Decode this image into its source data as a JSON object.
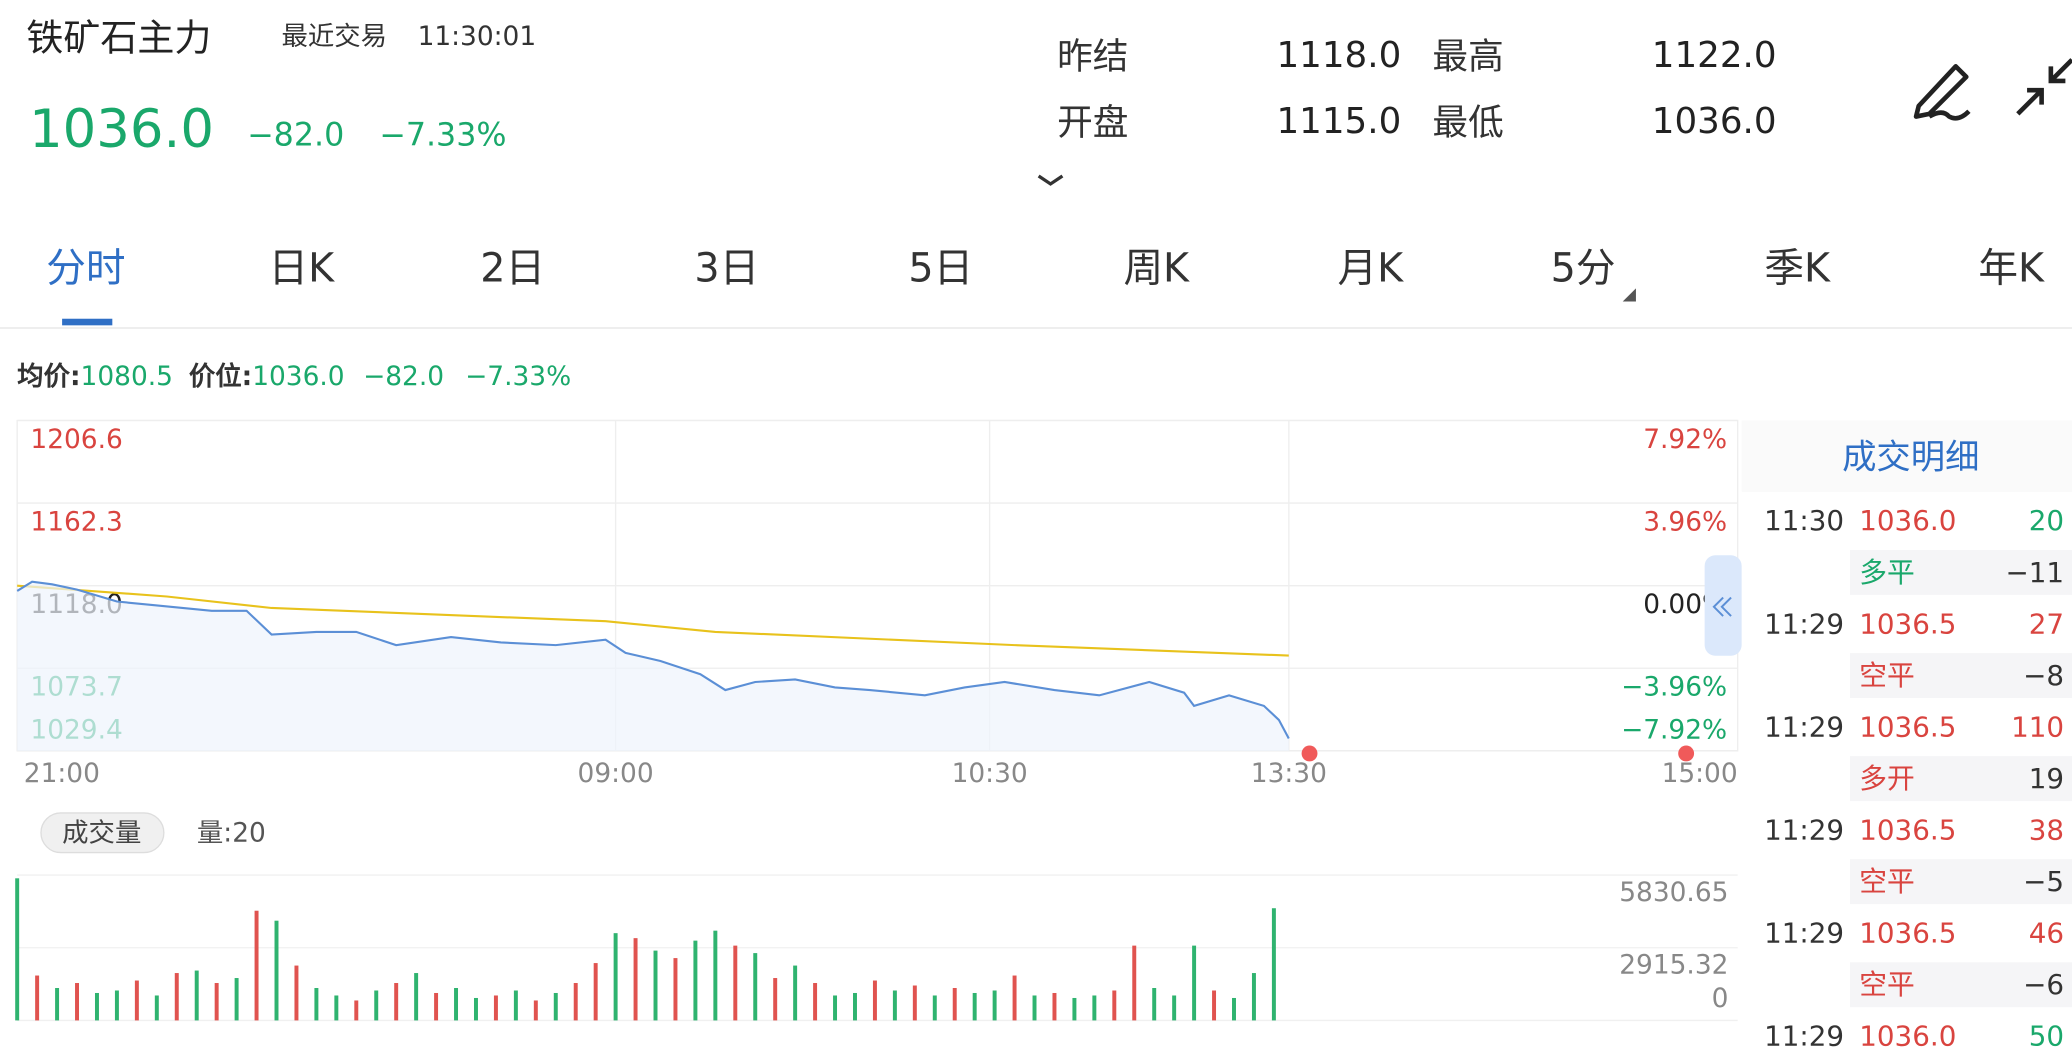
{
  "header": {
    "title": "铁矿石主力",
    "last_trade_label": "最近交易",
    "last_trade_time": "11:30:01",
    "price": "1036.0",
    "change": "−82.0",
    "change_pct": "−7.33%",
    "stats": [
      {
        "label": "昨结",
        "value": "1118.0"
      },
      {
        "label": "最高",
        "value": "1122.0"
      },
      {
        "label": "开盘",
        "value": "1115.0"
      },
      {
        "label": "最低",
        "value": "1036.0"
      }
    ]
  },
  "tabs": [
    "分时",
    "日K",
    "2日",
    "3日",
    "5日",
    "周K",
    "月K",
    "5分",
    "季K",
    "年K"
  ],
  "quote_bar": {
    "avg_label": "均价:",
    "avg": "1080.5",
    "price_label": "价位:",
    "price": "1036.0",
    "change": "−82.0",
    "change_pct": "−7.33%"
  },
  "chart_data": [
    {
      "type": "line",
      "xlim": [
        0,
        345
      ],
      "xticks": [
        {
          "value": 0,
          "label": "21:00"
        },
        {
          "value": 120,
          "label": "09:00"
        },
        {
          "value": 195,
          "label": "10:30"
        },
        {
          "value": 255,
          "label": "13:30"
        },
        {
          "value": 345,
          "label": "15:00"
        }
      ],
      "ylim": [
        1029.4,
        1206.6
      ],
      "yticks": [
        1206.6,
        1162.3,
        {
          "value": 1118.0,
          "label": "1118.0"
        },
        1073.7,
        1029.4
      ],
      "y2lim": [
        -7.92,
        7.92
      ],
      "y2ticks": [
        {
          "value": 7.92,
          "label": "7.92%"
        },
        {
          "value": 3.96,
          "label": "3.96%"
        },
        {
          "value": 0,
          "label": "0.00%"
        },
        {
          "value": -3.96,
          "label": "−3.96%"
        },
        {
          "value": -7.92,
          "label": "−7.92%"
        }
      ],
      "grid": true,
      "series": [
        {
          "color": "#5b8fd6",
          "x": [
            0,
            3,
            7,
            12,
            20,
            28,
            39,
            46,
            51,
            60,
            68,
            76,
            87,
            97,
            108,
            118,
            122,
            129,
            137,
            142,
            148,
            156,
            164,
            171,
            182,
            190,
            198,
            208,
            217,
            227,
            234,
            236,
            243,
            250,
            253,
            255
          ],
          "values": [
            1115.2,
            1120.1,
            1118.7,
            1115.9,
            1109.5,
            1107.4,
            1104.5,
            1104.5,
            1091.8,
            1093.2,
            1093.2,
            1086.1,
            1090.4,
            1087.5,
            1086.1,
            1089.0,
            1081.9,
            1077.6,
            1070.5,
            1062.0,
            1066.3,
            1067.7,
            1063.4,
            1062.0,
            1059.2,
            1063.4,
            1066.3,
            1062.0,
            1059.2,
            1066.3,
            1060.6,
            1053.5,
            1059.2,
            1053.5,
            1046.0,
            1036.0
          ]
        },
        {
          "color": "#e8c21c",
          "x": [
            0,
            30,
            51,
            118,
            140,
            200,
            255
          ],
          "values": [
            1118.0,
            1112.2,
            1106.0,
            1098.9,
            1093.2,
            1086.1,
            1080.5
          ]
        }
      ]
    },
    {
      "type": "bar",
      "label": "成交量",
      "volume_text": "量:20",
      "xlim": [
        0,
        345
      ],
      "ylim": [
        0,
        5830.65
      ],
      "yticks": [
        5830.65,
        2915.32,
        0
      ],
      "x": [
        0,
        4,
        8,
        12,
        16,
        20,
        24,
        28,
        32,
        36,
        40,
        44,
        48,
        52,
        56,
        60,
        64,
        68,
        72,
        76,
        80,
        84,
        88,
        92,
        96,
        100,
        104,
        108,
        112,
        116,
        120,
        124,
        128,
        132,
        136,
        140,
        144,
        148,
        152,
        156,
        160,
        164,
        168,
        172,
        176,
        180,
        184,
        188,
        192,
        196,
        200,
        204,
        208,
        212,
        216,
        220,
        224,
        228,
        232,
        236,
        240,
        244,
        248,
        252
      ],
      "values": [
        5700,
        1800,
        1300,
        1500,
        1100,
        1200,
        1600,
        1000,
        1900,
        2000,
        1500,
        1700,
        4400,
        4000,
        2200,
        1300,
        1000,
        800,
        1200,
        1500,
        1900,
        1100,
        1300,
        900,
        1000,
        1200,
        800,
        1100,
        1500,
        2300,
        3500,
        3300,
        2800,
        2500,
        3200,
        3600,
        3000,
        2700,
        1700,
        2200,
        1500,
        1000,
        1100,
        1600,
        1200,
        1400,
        1000,
        1300,
        1100,
        1200,
        1800,
        1000,
        1100,
        900,
        1000,
        1200,
        3000,
        1300,
        1000,
        3000,
        1200,
        900,
        1900,
        4500
      ],
      "colors": [
        "#2fb36f",
        "#e0534f",
        "#2fb36f",
        "#e0534f",
        "#2fb36f",
        "#2fb36f",
        "#e0534f",
        "#2fb36f",
        "#e0534f",
        "#2fb36f",
        "#e0534f",
        "#2fb36f",
        "#e0534f",
        "#2fb36f",
        "#e0534f",
        "#2fb36f",
        "#2fb36f",
        "#e0534f",
        "#2fb36f",
        "#e0534f",
        "#2fb36f",
        "#e0534f",
        "#2fb36f",
        "#2fb36f",
        "#e0534f",
        "#2fb36f",
        "#e0534f",
        "#2fb36f",
        "#e0534f",
        "#e0534f",
        "#2fb36f",
        "#e0534f",
        "#2fb36f",
        "#e0534f",
        "#2fb36f",
        "#2fb36f",
        "#e0534f",
        "#2fb36f",
        "#e0534f",
        "#2fb36f",
        "#e0534f",
        "#2fb36f",
        "#2fb36f",
        "#e0534f",
        "#2fb36f",
        "#e0534f",
        "#2fb36f",
        "#e0534f",
        "#2fb36f",
        "#2fb36f",
        "#e0534f",
        "#2fb36f",
        "#e0534f",
        "#2fb36f",
        "#2fb36f",
        "#e0534f",
        "#e0534f",
        "#2fb36f",
        "#2fb36f",
        "#2fb36f",
        "#e0534f",
        "#2fb36f",
        "#2fb36f",
        "#2fb36f"
      ]
    }
  ],
  "trade_detail": {
    "title": "成交明细",
    "rows": [
      {
        "time": "11:30",
        "price": "1036.0",
        "volume": "20",
        "volume_color": "#1aa86b",
        "kind": "多平",
        "kind_color": "#1aa86b",
        "change": "−11"
      },
      {
        "time": "11:29",
        "price": "1036.5",
        "volume": "27",
        "volume_color": "#d9443f",
        "kind": "空平",
        "kind_color": "#d9443f",
        "change": "−8"
      },
      {
        "time": "11:29",
        "price": "1036.5",
        "volume": "110",
        "volume_color": "#d9443f",
        "kind": "多开",
        "kind_color": "#d9443f",
        "change": "19"
      },
      {
        "time": "11:29",
        "price": "1036.5",
        "volume": "38",
        "volume_color": "#d9443f",
        "kind": "空平",
        "kind_color": "#d9443f",
        "change": "−5"
      },
      {
        "time": "11:29",
        "price": "1036.5",
        "volume": "46",
        "volume_color": "#d9443f",
        "kind": "空平",
        "kind_color": "#d9443f",
        "change": "−6"
      },
      {
        "time": "11:29",
        "price": "1036.0",
        "volume": "50",
        "volume_color": "#1aa86b"
      }
    ]
  }
}
